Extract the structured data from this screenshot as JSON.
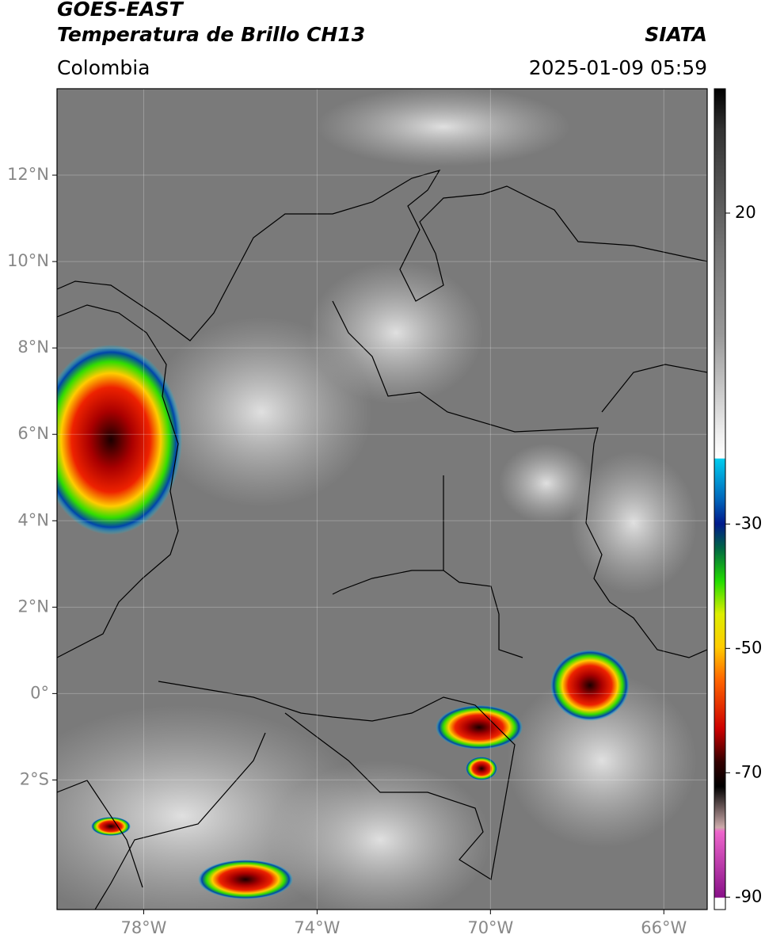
{
  "chart_data": {
    "type": "map",
    "title": "GOES-EAST",
    "subtitle": "Temperatura de Brillo CH13",
    "source": "SIATA",
    "region": "Colombia",
    "timestamp": "2025-01-09 05:59",
    "xlim": [
      -80,
      -65
    ],
    "ylim": [
      -5,
      14
    ],
    "xticks": [
      {
        "value": -78,
        "label": "78°W"
      },
      {
        "value": -74,
        "label": "74°W"
      },
      {
        "value": -70,
        "label": "70°W"
      },
      {
        "value": -66,
        "label": "66°W"
      }
    ],
    "yticks": [
      {
        "value": 12,
        "label": "12°N"
      },
      {
        "value": 10,
        "label": "10°N"
      },
      {
        "value": 8,
        "label": "8°N"
      },
      {
        "value": 6,
        "label": "6°N"
      },
      {
        "value": 4,
        "label": "4°N"
      },
      {
        "value": 2,
        "label": "2°N"
      },
      {
        "value": 0,
        "label": "0°"
      },
      {
        "value": -2,
        "label": "2°S"
      }
    ],
    "grid": true,
    "colorbar": {
      "lim": [
        -92,
        40
      ],
      "ticks": [
        20,
        -30,
        -50,
        -70,
        -90
      ]
    }
  }
}
